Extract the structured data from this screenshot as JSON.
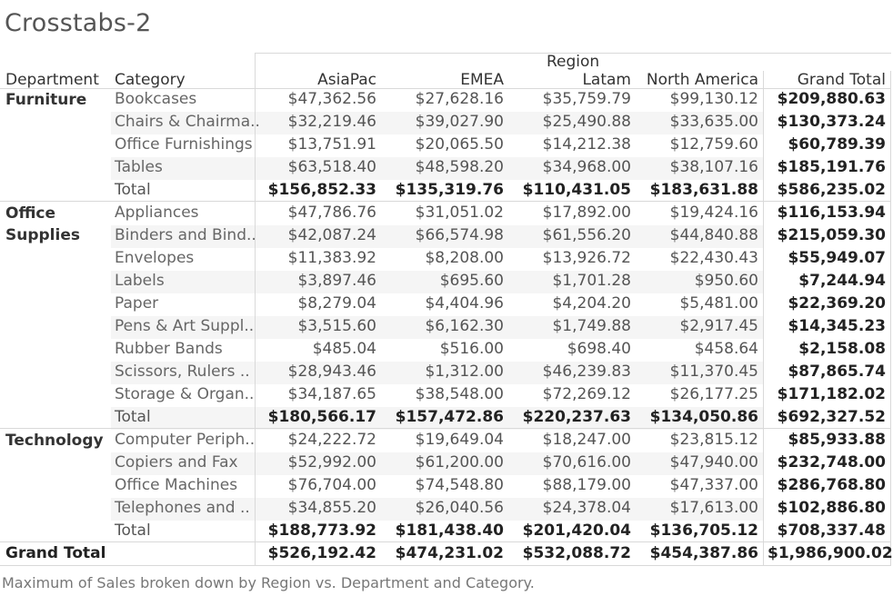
{
  "title": "Crosstabs-2",
  "caption": "Maximum of Sales broken down by Region vs. Department and Category.",
  "header": {
    "region_label": "Region",
    "department_label": "Department",
    "category_label": "Category",
    "columns": [
      "AsiaPac",
      "EMEA",
      "Latam",
      "North America",
      "Grand Total"
    ]
  },
  "groups": [
    {
      "department": "Furniture",
      "rows": [
        {
          "category": "Bookcases",
          "values": [
            "$47,362.56",
            "$27,628.16",
            "$35,759.79",
            "$99,130.12",
            "$209,880.63"
          ]
        },
        {
          "category": "Chairs & Chairma..",
          "values": [
            "$32,219.46",
            "$39,027.90",
            "$25,490.88",
            "$33,635.00",
            "$130,373.24"
          ]
        },
        {
          "category": "Office Furnishings",
          "values": [
            "$13,751.91",
            "$20,065.50",
            "$14,212.38",
            "$12,759.60",
            "$60,789.39"
          ]
        },
        {
          "category": "Tables",
          "values": [
            "$63,518.40",
            "$48,598.20",
            "$34,968.00",
            "$38,107.16",
            "$185,191.76"
          ]
        }
      ],
      "total": {
        "category": "Total",
        "values": [
          "$156,852.33",
          "$135,319.76",
          "$110,431.05",
          "$183,631.88",
          "$586,235.02"
        ]
      }
    },
    {
      "department": "Office Supplies",
      "department_lines": [
        "Office",
        "Supplies"
      ],
      "rows": [
        {
          "category": "Appliances",
          "values": [
            "$47,786.76",
            "$31,051.02",
            "$17,892.00",
            "$19,424.16",
            "$116,153.94"
          ]
        },
        {
          "category": "Binders and Bind..",
          "values": [
            "$42,087.24",
            "$66,574.98",
            "$61,556.20",
            "$44,840.88",
            "$215,059.30"
          ]
        },
        {
          "category": "Envelopes",
          "values": [
            "$11,383.92",
            "$8,208.00",
            "$13,926.72",
            "$22,430.43",
            "$55,949.07"
          ]
        },
        {
          "category": "Labels",
          "values": [
            "$3,897.46",
            "$695.60",
            "$1,701.28",
            "$950.60",
            "$7,244.94"
          ]
        },
        {
          "category": "Paper",
          "values": [
            "$8,279.04",
            "$4,404.96",
            "$4,204.20",
            "$5,481.00",
            "$22,369.20"
          ]
        },
        {
          "category": "Pens & Art Suppl..",
          "values": [
            "$3,515.60",
            "$6,162.30",
            "$1,749.88",
            "$2,917.45",
            "$14,345.23"
          ]
        },
        {
          "category": "Rubber Bands",
          "values": [
            "$485.04",
            "$516.00",
            "$698.40",
            "$458.64",
            "$2,158.08"
          ]
        },
        {
          "category": "Scissors, Rulers ..",
          "values": [
            "$28,943.46",
            "$1,312.00",
            "$46,239.83",
            "$11,370.45",
            "$87,865.74"
          ]
        },
        {
          "category": "Storage & Organ..",
          "values": [
            "$34,187.65",
            "$38,548.00",
            "$72,269.12",
            "$26,177.25",
            "$171,182.02"
          ]
        }
      ],
      "total": {
        "category": "Total",
        "values": [
          "$180,566.17",
          "$157,472.86",
          "$220,237.63",
          "$134,050.86",
          "$692,327.52"
        ]
      }
    },
    {
      "department": "Technology",
      "rows": [
        {
          "category": "Computer Periph..",
          "values": [
            "$24,222.72",
            "$19,649.04",
            "$18,247.00",
            "$23,815.12",
            "$85,933.88"
          ]
        },
        {
          "category": "Copiers and Fax",
          "values": [
            "$52,992.00",
            "$61,200.00",
            "$70,616.00",
            "$47,940.00",
            "$232,748.00"
          ]
        },
        {
          "category": "Office Machines",
          "values": [
            "$76,704.00",
            "$74,548.80",
            "$88,179.00",
            "$47,337.00",
            "$286,768.80"
          ]
        },
        {
          "category": "Telephones and ..",
          "values": [
            "$34,855.20",
            "$26,040.56",
            "$24,378.04",
            "$17,613.00",
            "$102,886.80"
          ]
        }
      ],
      "total": {
        "category": "Total",
        "values": [
          "$188,773.92",
          "$181,438.40",
          "$201,420.04",
          "$136,705.12",
          "$708,337.48"
        ]
      }
    }
  ],
  "grand_total": {
    "label": "Grand Total",
    "values": [
      "$526,192.42",
      "$474,231.02",
      "$532,088.72",
      "$454,387.86",
      "$1,986,900.02"
    ]
  }
}
